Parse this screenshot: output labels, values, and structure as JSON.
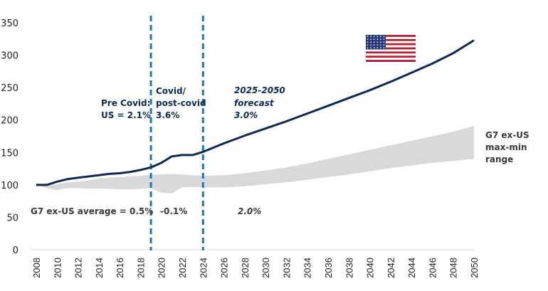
{
  "chart_data": {
    "type": "line",
    "title": "",
    "xlabel": "",
    "ylabel": "",
    "ylim": [
      0,
      350
    ],
    "xlim": [
      2008,
      2050
    ],
    "yticks": [
      "0",
      "50",
      "100",
      "150",
      "200",
      "250",
      "300",
      "350"
    ],
    "ytick_values": [
      0,
      50,
      100,
      150,
      200,
      250,
      300,
      350
    ],
    "xticks": [
      "2008",
      "2010",
      "2012",
      "2014",
      "2016",
      "2018",
      "2020",
      "2022",
      "2024",
      "2026",
      "2028",
      "2030",
      "2032",
      "2034",
      "2036",
      "2038",
      "2040",
      "2042",
      "2044",
      "2046",
      "2048",
      "2050"
    ],
    "grid": false,
    "series": [
      {
        "name": "US",
        "color": "#0b2a55",
        "x": [
          2008,
          2009,
          2010,
          2011,
          2012,
          2013,
          2014,
          2015,
          2016,
          2017,
          2018,
          2019,
          2020,
          2021,
          2022,
          2023,
          2024,
          2026,
          2028,
          2030,
          2032,
          2034,
          2036,
          2038,
          2040,
          2042,
          2044,
          2046,
          2048,
          2050
        ],
        "values": [
          100,
          100,
          105,
          109,
          111,
          113,
          115,
          117,
          118,
          120,
          123,
          127,
          134,
          144,
          146,
          146,
          151,
          164,
          176,
          187,
          198,
          210,
          222,
          234,
          246,
          259,
          273,
          287,
          303,
          323
        ]
      },
      {
        "name": "G7 ex-US max-min range",
        "type": "area-band",
        "color": "#d9d9d9",
        "x": [
          2008,
          2009,
          2010,
          2011,
          2012,
          2013,
          2014,
          2015,
          2016,
          2017,
          2018,
          2019,
          2020,
          2021,
          2022,
          2023,
          2024,
          2026,
          2028,
          2030,
          2032,
          2034,
          2036,
          2038,
          2040,
          2042,
          2044,
          2046,
          2048,
          2050
        ],
        "upper": [
          100,
          99,
          101,
          104,
          105,
          107,
          110,
          111,
          112,
          113,
          114,
          116,
          116,
          117,
          116,
          115,
          114,
          115,
          118,
          122,
          127,
          133,
          140,
          147,
          154,
          161,
          168,
          175,
          182,
          191
        ],
        "lower": [
          100,
          95,
          92,
          95,
          95,
          94,
          94,
          94,
          93,
          93,
          94,
          95,
          88,
          87,
          96,
          97,
          96,
          96,
          98,
          101,
          104,
          108,
          112,
          116,
          121,
          126,
          130,
          134,
          137,
          140
        ]
      }
    ],
    "vlines": [
      {
        "x": 2019,
        "style": "dashed",
        "color": "#1f77b4"
      },
      {
        "x": 2024,
        "style": "dashed",
        "color": "#1f77b4"
      }
    ],
    "annotations": [
      {
        "id": "pre_covid_1",
        "text": "Pre Covid:",
        "color": "#0b2a55"
      },
      {
        "id": "pre_covid_2",
        "text": "US = 2.1%",
        "color": "#0b2a55"
      },
      {
        "id": "covid_1",
        "text": "Covid/",
        "color": "#0b2a55"
      },
      {
        "id": "covid_2",
        "text": "post-covid",
        "color": "#0b2a55"
      },
      {
        "id": "covid_3",
        "text": "3.6%",
        "color": "#0b2a55"
      },
      {
        "id": "forecast_1",
        "text": "2025-2050",
        "color": "#0b2a55",
        "italic": true
      },
      {
        "id": "forecast_2",
        "text": "forecast",
        "color": "#0b2a55",
        "italic": true
      },
      {
        "id": "forecast_3",
        "text": "3.0%",
        "color": "#0b2a55",
        "italic": true
      },
      {
        "id": "g7_avg",
        "text": "G7 ex-US average = 0.5%",
        "color": "#3a3a3a"
      },
      {
        "id": "g7_covid",
        "text": "-0.1%",
        "color": "#3a3a3a"
      },
      {
        "id": "g7_forecast",
        "text": "2.0%",
        "color": "#3a3a3a",
        "italic": true
      },
      {
        "id": "range_1",
        "text": "G7 ex-US",
        "color": "#3a3a3a"
      },
      {
        "id": "range_2",
        "text": "max-min",
        "color": "#3a3a3a"
      },
      {
        "id": "range_3",
        "text": "range",
        "color": "#3a3a3a"
      }
    ],
    "legend": "none",
    "icon": "us-flag-icon"
  }
}
